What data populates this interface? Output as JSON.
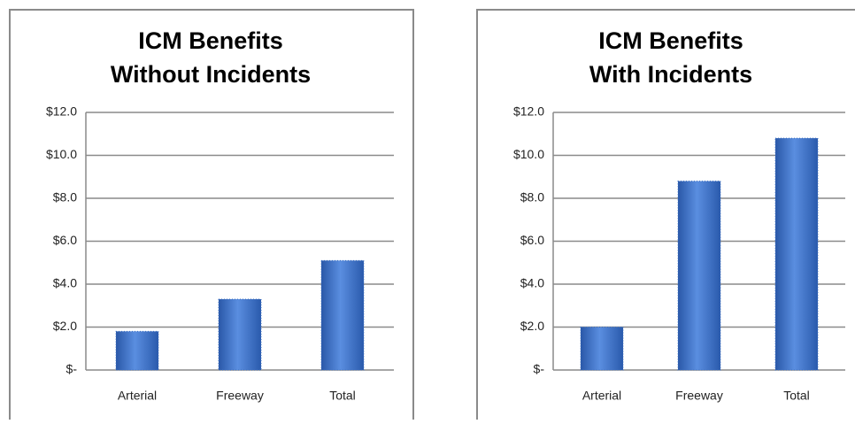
{
  "chart_data": [
    {
      "type": "bar",
      "title": [
        "ICM Benefits",
        "Without Incidents"
      ],
      "categories": [
        "Arterial",
        "Freeway",
        "Total"
      ],
      "values": [
        1.8,
        3.3,
        5.1
      ],
      "color": "#3a6fc4",
      "ylim": [
        0,
        12
      ],
      "yticks": [
        {
          "value": 0,
          "label": "$-"
        },
        {
          "value": 2,
          "label": "$2.0"
        },
        {
          "value": 4,
          "label": "$4.0"
        },
        {
          "value": 6,
          "label": "$6.0"
        },
        {
          "value": 8,
          "label": "$8.0"
        },
        {
          "value": 10,
          "label": "$10.0"
        },
        {
          "value": 12,
          "label": "$12.0"
        }
      ],
      "grid": true
    },
    {
      "type": "bar",
      "title": [
        "ICM Benefits",
        "With Incidents"
      ],
      "categories": [
        "Arterial",
        "Freeway",
        "Total"
      ],
      "values": [
        2.0,
        8.8,
        10.8
      ],
      "color": "#3a6fc4",
      "ylim": [
        0,
        12
      ],
      "yticks": [
        {
          "value": 0,
          "label": "$-"
        },
        {
          "value": 2,
          "label": "$2.0"
        },
        {
          "value": 4,
          "label": "$4.0"
        },
        {
          "value": 6,
          "label": "$6.0"
        },
        {
          "value": 8,
          "label": "$8.0"
        },
        {
          "value": 10,
          "label": "$10.0"
        },
        {
          "value": 12,
          "label": "$12.0"
        }
      ],
      "grid": true
    }
  ]
}
